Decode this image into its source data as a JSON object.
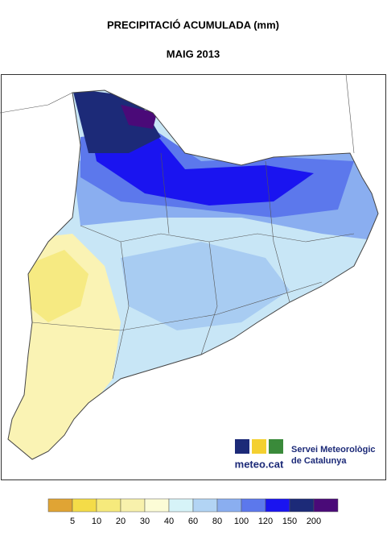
{
  "header": {
    "title": "PRECIPITACIÓ ACUMULADA (mm)",
    "subtitle": "MAIG 2013"
  },
  "legend": {
    "colors": [
      "#e0a434",
      "#f4dc48",
      "#f6ea7c",
      "#f8f1ac",
      "#fcfcd6",
      "#d6f3f8",
      "#b2d4f4",
      "#8aaef0",
      "#5c78ec",
      "#1a14f0",
      "#1c2a78",
      "#4a0a78"
    ],
    "ticks": [
      5,
      10,
      20,
      30,
      40,
      60,
      80,
      100,
      120,
      150,
      200
    ]
  },
  "logo": {
    "brand": "meteo.cat",
    "org_line1": "Servei Meteorològic",
    "org_line2": "de Catalunya"
  }
}
